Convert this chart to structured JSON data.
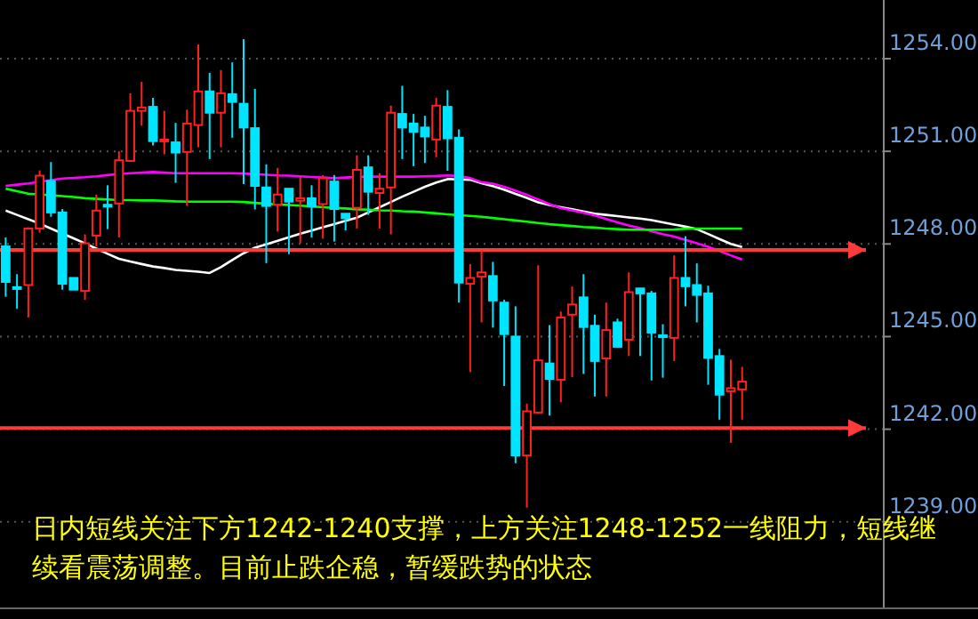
{
  "chart_data": {
    "type": "candlestick",
    "categories": [
      null,
      null,
      null,
      null,
      null,
      null,
      null,
      null,
      null,
      null,
      null,
      null,
      null,
      null,
      null,
      null,
      null,
      null,
      null,
      null,
      null,
      null,
      null,
      null,
      null,
      null,
      null,
      null,
      null,
      null,
      null,
      null,
      null,
      null,
      null,
      null,
      null,
      null,
      null,
      null,
      null,
      null,
      null,
      null,
      null,
      null,
      null,
      null,
      null,
      null,
      null,
      null,
      null,
      null,
      null,
      null,
      null,
      null,
      null,
      null,
      null,
      null,
      null,
      null,
      null,
      null,
      null,
      null,
      null,
      null,
      null,
      null,
      null,
      null,
      null,
      null,
      null,
      null
    ],
    "ohlc": [
      [
        1247.92,
        1248.21,
        1246.29,
        1246.77
      ],
      [
        1246.6,
        1247.02,
        1245.9,
        1246.6
      ],
      [
        1246.67,
        1248.54,
        1245.62,
        1248.5
      ],
      [
        1248.5,
        1250.38,
        1248.37,
        1250.21
      ],
      [
        1250.04,
        1250.65,
        1248.88,
        1249.02
      ],
      [
        1249.02,
        1249.13,
        1246.52,
        1246.71
      ],
      [
        1246.9,
        1246.9,
        1246.52,
        1246.52
      ],
      [
        1246.48,
        1248.31,
        1246.19,
        1248.02
      ],
      [
        1248.27,
        1249.6,
        1247.92,
        1249.08
      ],
      [
        1249.27,
        1249.9,
        1248.48,
        1249.21
      ],
      [
        1249.31,
        1251.0,
        1248.21,
        1250.71
      ],
      [
        1250.69,
        1252.88,
        1250.67,
        1252.31
      ],
      [
        1252.31,
        1253.25,
        1251.83,
        1252.42
      ],
      [
        1252.44,
        1252.73,
        1251.19,
        1251.33
      ],
      [
        1251.33,
        1252.31,
        1250.9,
        1251.38
      ],
      [
        1251.29,
        1251.92,
        1249.98,
        1250.96
      ],
      [
        1250.98,
        1252.35,
        1249.23,
        1251.9
      ],
      [
        1251.85,
        1254.46,
        1251.13,
        1252.94
      ],
      [
        1252.94,
        1253.54,
        1250.75,
        1252.25
      ],
      [
        1252.25,
        1253.63,
        1251.13,
        1252.88
      ],
      [
        1252.85,
        1253.88,
        1251.44,
        1252.6
      ],
      [
        1252.54,
        1254.63,
        1249.94,
        1251.77
      ],
      [
        1251.75,
        1253.02,
        1249.12,
        1249.88
      ],
      [
        1249.83,
        1250.58,
        1247.38,
        1249.23
      ],
      [
        1249.27,
        1250.46,
        1248.4,
        1249.6
      ],
      [
        1249.79,
        1249.79,
        1247.67,
        1249.37
      ],
      [
        1249.4,
        1250.17,
        1248.02,
        1249.48
      ],
      [
        1249.48,
        1249.9,
        1248.21,
        1249.21
      ],
      [
        1249.29,
        1250.23,
        1248.17,
        1250.13
      ],
      [
        1250.02,
        1250.23,
        1248.08,
        1249.13
      ],
      [
        1248.98,
        1248.98,
        1248.44,
        1248.83
      ],
      [
        1249.17,
        1250.87,
        1248.5,
        1250.4
      ],
      [
        1250.48,
        1250.87,
        1248.94,
        1249.69
      ],
      [
        1249.65,
        1250.29,
        1248.5,
        1249.79
      ],
      [
        1249.83,
        1252.48,
        1248.31,
        1252.25
      ],
      [
        1252.21,
        1253.12,
        1250.75,
        1251.77
      ],
      [
        1251.9,
        1252.21,
        1250.52,
        1251.63
      ],
      [
        1251.77,
        1252.15,
        1250.62,
        1251.48
      ],
      [
        1251.38,
        1252.73,
        1250.81,
        1252.48
      ],
      [
        1252.44,
        1252.98,
        1250.37,
        1251.42
      ],
      [
        1251.44,
        1251.71,
        1246.1,
        1246.75
      ],
      [
        1246.71,
        1247.35,
        1243.85,
        1246.9
      ],
      [
        1246.94,
        1247.79,
        1245.46,
        1247.08
      ],
      [
        1246.96,
        1247.42,
        1245.29,
        1246.17
      ],
      [
        1246.1,
        1246.19,
        1243.4,
        1245.08
      ],
      [
        1245.0,
        1245.98,
        1240.9,
        1241.15
      ],
      [
        1241.15,
        1242.83,
        1239.46,
        1242.58
      ],
      [
        1242.54,
        1247.31,
        1242.5,
        1244.23
      ],
      [
        1244.13,
        1245.37,
        1242.44,
        1243.63
      ],
      [
        1243.6,
        1245.81,
        1242.87,
        1245.62
      ],
      [
        1245.71,
        1246.62,
        1243.69,
        1246.04
      ],
      [
        1246.27,
        1247.02,
        1243.79,
        1245.31
      ],
      [
        1245.35,
        1245.71,
        1243.06,
        1244.21
      ],
      [
        1244.29,
        1246.1,
        1243.06,
        1245.21
      ],
      [
        1245.46,
        1245.58,
        1244.65,
        1244.67
      ],
      [
        1244.9,
        1247.08,
        1244.37,
        1246.44
      ],
      [
        1246.56,
        1246.56,
        1244.37,
        1246.4
      ],
      [
        1246.4,
        1246.48,
        1243.58,
        1245.13
      ],
      [
        1245.04,
        1245.4,
        1243.67,
        1245.04
      ],
      [
        1244.96,
        1247.63,
        1244.21,
        1246.9
      ],
      [
        1246.9,
        1248.25,
        1245.98,
        1246.63
      ],
      [
        1246.67,
        1247.37,
        1245.46,
        1246.35
      ],
      [
        1246.4,
        1246.65,
        1243.44,
        1244.31
      ],
      [
        1244.37,
        1244.6,
        1242.31,
        1243.12
      ],
      [
        1243.23,
        1244.25,
        1241.56,
        1243.33
      ],
      [
        1243.29,
        1244.02,
        1242.31,
        1243.54
      ],
      null,
      null,
      null,
      null,
      null,
      null,
      null,
      null,
      null,
      null,
      null,
      null
    ],
    "series": [
      {
        "type": "line",
        "color": "#ffffff",
        "values": [
          1249.08,
          1248.94,
          1248.8,
          1248.66,
          1248.5,
          1248.34,
          1248.18,
          1248.02,
          1247.85,
          1247.68,
          1247.52,
          1247.43,
          1247.35,
          1247.27,
          1247.22,
          1247.16,
          1247.13,
          1247.1,
          1247.06,
          1247.25,
          1247.48,
          1247.7,
          1247.88,
          1247.99,
          1248.1,
          1248.22,
          1248.33,
          1248.43,
          1248.54,
          1248.64,
          1248.75,
          1248.85,
          1249.02,
          1249.19,
          1249.36,
          1249.53,
          1249.69,
          1249.85,
          1249.99,
          1250.1,
          1250.09,
          1250.08,
          1249.97,
          1249.87,
          1249.76,
          1249.62,
          1249.49,
          1249.35,
          1249.26,
          1249.19,
          1249.12,
          1249.05,
          1248.98,
          1248.94,
          1248.9,
          1248.86,
          1248.82,
          1248.77,
          1248.7,
          1248.63,
          1248.56,
          1248.48,
          1248.32,
          1248.16,
          1248.0,
          1247.9,
          null,
          null,
          null,
          null,
          null,
          null,
          null,
          null,
          null,
          null,
          null,
          null
        ]
      },
      {
        "type": "line",
        "color": "#ff00ff",
        "values": [
          1249.88,
          1249.92,
          1249.96,
          1250.01,
          1250.07,
          1250.12,
          1250.14,
          1250.16,
          1250.19,
          1250.23,
          1250.27,
          1250.29,
          1250.31,
          1250.33,
          1250.31,
          1250.29,
          1250.29,
          1250.29,
          1250.29,
          1250.29,
          1250.29,
          1250.28,
          1250.26,
          1250.24,
          1250.22,
          1250.21,
          1250.19,
          1250.17,
          1250.15,
          1250.13,
          1250.15,
          1250.17,
          1250.18,
          1250.18,
          1250.18,
          1250.18,
          1250.18,
          1250.19,
          1250.2,
          1250.22,
          1250.2,
          1250.13,
          1250.0,
          1249.95,
          1249.85,
          1249.72,
          1249.59,
          1249.44,
          1249.29,
          1249.16,
          1249.09,
          1249.01,
          1248.92,
          1248.81,
          1248.7,
          1248.6,
          1248.51,
          1248.41,
          1248.32,
          1248.24,
          1248.13,
          1248.02,
          1247.91,
          1247.77,
          1247.63,
          1247.5,
          null,
          null,
          null,
          null,
          null,
          null,
          null,
          null,
          null,
          null,
          null,
          null
        ]
      },
      {
        "type": "line",
        "color": "#00ff00",
        "values": [
          1249.79,
          1249.71,
          1249.63,
          1249.6,
          1249.58,
          1249.55,
          1249.52,
          1249.48,
          1249.46,
          1249.44,
          1249.42,
          1249.42,
          1249.41,
          1249.41,
          1249.4,
          1249.38,
          1249.37,
          1249.37,
          1249.37,
          1249.37,
          1249.37,
          1249.36,
          1249.33,
          1249.3,
          1249.28,
          1249.26,
          1249.24,
          1249.22,
          1249.19,
          1249.17,
          1249.15,
          1249.12,
          1249.11,
          1249.09,
          1249.08,
          1249.06,
          1249.05,
          1249.02,
          1248.99,
          1248.96,
          1248.93,
          1248.91,
          1248.88,
          1248.84,
          1248.8,
          1248.76,
          1248.72,
          1248.68,
          1248.64,
          1248.61,
          1248.58,
          1248.55,
          1248.53,
          1248.5,
          1248.48,
          1248.46,
          1248.46,
          1248.46,
          1248.46,
          1248.47,
          1248.49,
          1248.5,
          1248.5,
          1248.5,
          1248.5,
          1248.5,
          null,
          null,
          null,
          null,
          null,
          null,
          null,
          null,
          null,
          null,
          null,
          null
        ]
      }
    ],
    "ylim": [
      1236.2,
      1255.9
    ],
    "yticks": [
      {
        "value": 1239,
        "label": "1239.00"
      },
      {
        "value": 1242,
        "label": "1242.00"
      },
      {
        "value": 1245,
        "label": "1245.00"
      },
      {
        "value": 1248,
        "label": "1248.00"
      },
      {
        "value": 1251,
        "label": "1251.00"
      },
      {
        "value": 1254,
        "label": "1254.00"
      }
    ],
    "grid": "y",
    "ref_lines": [
      {
        "axis": "y",
        "value": 1247.81,
        "color": "#ff3a3a"
      },
      {
        "axis": "y",
        "value": 1242.04,
        "color": "#ff3a3a"
      }
    ],
    "annotations": [
      "日内短线关注下方1242-1240支撑，上方关注1248-1252一线阻力，短线继续看震荡调整。目前止跌企稳，暂缓跌势的状态"
    ]
  }
}
